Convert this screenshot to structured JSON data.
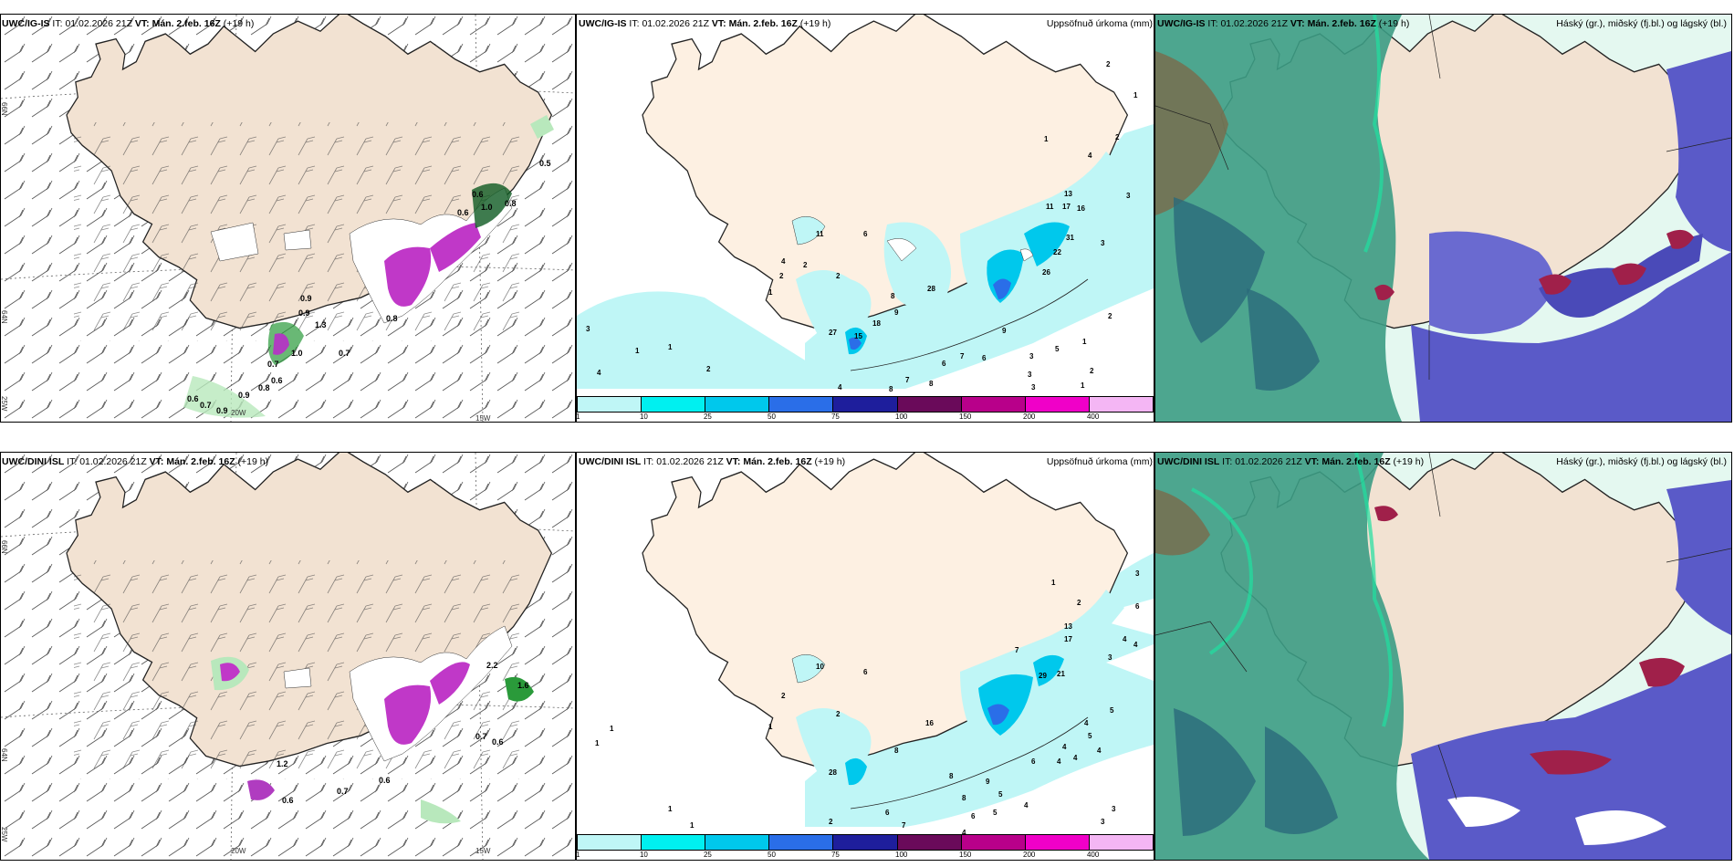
{
  "rows": [
    {
      "model": "UWC/IG-IS",
      "it_label": "IT:",
      "it": "01.02.2026 21Z",
      "vt_label": "VT:",
      "vt": "Mán. 2.feb. 16Z",
      "lead": "(+19 h)"
    },
    {
      "model": "UWC/DINI ISL",
      "it_label": "IT:",
      "it": "01.02.2026 21Z",
      "vt_label": "VT:",
      "vt": "Mán. 2.feb. 16Z",
      "lead": "(+19 h)"
    }
  ],
  "precip_title": "Uppsöfnuð úrkoma (mm)",
  "cloud_title": "Háský (gr.), miðský (fj.bl.) og lágský (bl.)",
  "axis": {
    "lat66": "66N",
    "lat64": "64N",
    "lon25": "25W",
    "lon20": "20W",
    "lon15": "15W"
  },
  "colorbar": {
    "labels": [
      "1",
      "10",
      "25",
      "50",
      "75",
      "100",
      "150",
      "200",
      "400"
    ],
    "colors": [
      "#bff6f6",
      "#00f0f0",
      "#00c8ec",
      "#2a6ee8",
      "#1e1e9c",
      "#6a0a5a",
      "#b8008a",
      "#f000c8",
      "#f4b6f4"
    ]
  },
  "top_wind_values": [
    "0.5",
    "0.6",
    "1.0",
    "0.8",
    "0.9",
    "0.7",
    "1.3",
    "1.0",
    "0.7",
    "0.6",
    "0.7",
    "0.9",
    "0.8",
    "0.9",
    "0.6",
    "0.8",
    "0.6",
    "0.9"
  ],
  "bottom_wind_values": [
    "2.2",
    "1.6",
    "0.7",
    "0.6",
    "1.2",
    "0.6",
    "0.7",
    "0.6"
  ],
  "top_precip_values": [
    "2",
    "1",
    "2",
    "1",
    "4",
    "13",
    "11",
    "17",
    "16",
    "3",
    "22",
    "26",
    "3",
    "2",
    "1",
    "6",
    "11",
    "4",
    "2",
    "2",
    "2",
    "1",
    "28",
    "8",
    "27",
    "15",
    "18",
    "9",
    "7",
    "6",
    "5",
    "3",
    "1",
    "2",
    "3",
    "4",
    "1",
    "1",
    "2",
    "4",
    "8",
    "7",
    "6",
    "3",
    "3",
    "9",
    "8",
    "31"
  ],
  "bottom_precip_values": [
    "1",
    "3",
    "2",
    "13",
    "17",
    "6",
    "4",
    "4",
    "3",
    "10",
    "6",
    "2",
    "2",
    "1",
    "28",
    "8",
    "16",
    "5",
    "7",
    "29",
    "21",
    "4",
    "5",
    "4",
    "4",
    "6",
    "4",
    "4",
    "3",
    "3",
    "8",
    "9",
    "5",
    "8",
    "4",
    "1",
    "1",
    "1",
    "1",
    "2",
    "7",
    "6",
    "4",
    "5",
    "6"
  ]
}
